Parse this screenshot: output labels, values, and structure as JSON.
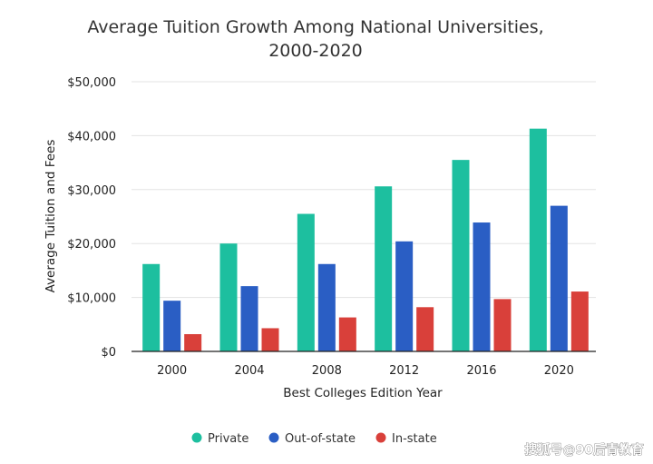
{
  "chart_data": {
    "type": "bar",
    "title": "Average Tuition Growth Among National Universities,",
    "subtitle": "2000-2020",
    "xlabel": "Best Colleges Edition Year",
    "ylabel": "Average Tuition and Fees",
    "categories": [
      "2000",
      "2004",
      "2008",
      "2012",
      "2016",
      "2020"
    ],
    "series": [
      {
        "name": "Private",
        "color": "#1dbf9f",
        "values": [
          16200,
          20000,
          25500,
          30600,
          35500,
          41300
        ]
      },
      {
        "name": "Out-of-state",
        "color": "#2a5ec4",
        "values": [
          9400,
          12100,
          16200,
          20400,
          23900,
          27000
        ]
      },
      {
        "name": "In-state",
        "color": "#d9403a",
        "values": [
          3200,
          4300,
          6300,
          8200,
          9700,
          11100
        ]
      }
    ],
    "ylim": [
      0,
      50000
    ],
    "yticks": [
      0,
      10000,
      20000,
      30000,
      40000,
      50000
    ],
    "ytick_labels": [
      "$0",
      "$10,000",
      "$20,000",
      "$30,000",
      "$40,000",
      "$50,000"
    ],
    "grid": true,
    "legend_position": "bottom-center"
  },
  "watermark": "搜狐号@90后青教育"
}
